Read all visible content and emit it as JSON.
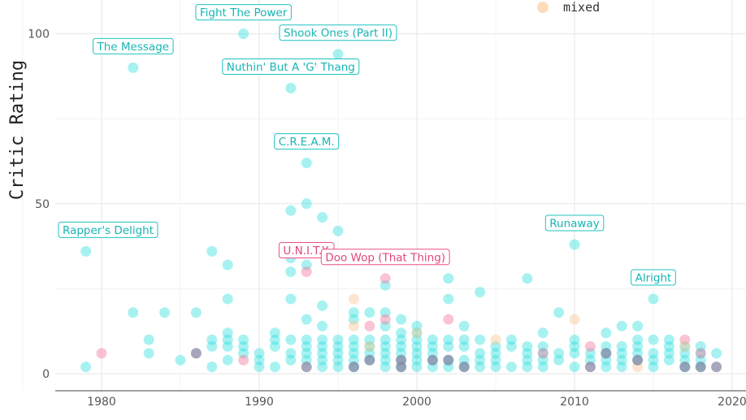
{
  "chart_data": {
    "type": "scatter",
    "title": "",
    "xlabel": "",
    "ylabel": "Critic Rating",
    "xlim": [
      1967,
      2021
    ],
    "ylim": [
      -4,
      112
    ],
    "x_ticks": [
      1980,
      1990,
      2000,
      2010,
      2020
    ],
    "y_ticks": [
      0,
      50,
      100
    ],
    "grid": true,
    "legend": {
      "position": "top-right",
      "visible_entries": [
        {
          "label": "mixed",
          "color": "#fbc48f"
        }
      ]
    },
    "colors": {
      "main": "#2ee0dd",
      "female": "#f2739c",
      "mixed": "#fbc48f",
      "dark": "#8a88a6"
    },
    "annotations": [
      {
        "text": "Rapper's Delight",
        "x": 1979,
        "y": 36,
        "group": "main"
      },
      {
        "text": "The Message",
        "x": 1982,
        "y": 90,
        "group": "main"
      },
      {
        "text": "Fight The Power",
        "x": 1989,
        "y": 100,
        "group": "main"
      },
      {
        "text": "Shook Ones (Part II)",
        "x": 1995,
        "y": 94,
        "group": "main"
      },
      {
        "text": "Nuthin' But A 'G' Thang",
        "x": 1992,
        "y": 84,
        "group": "main"
      },
      {
        "text": "C.R.E.A.M.",
        "x": 1993,
        "y": 62,
        "group": "main"
      },
      {
        "text": "U.N.I.T.Y.",
        "x": 1993,
        "y": 30,
        "group": "female"
      },
      {
        "text": "Doo Wop (That Thing)",
        "x": 1998,
        "y": 28,
        "group": "female"
      },
      {
        "text": "Runaway",
        "x": 2010,
        "y": 38,
        "group": "main"
      },
      {
        "text": "Alright",
        "x": 2015,
        "y": 22,
        "group": "main"
      }
    ],
    "series": [
      {
        "group": "main",
        "points": [
          [
            1979,
            36
          ],
          [
            1979,
            2
          ],
          [
            1982,
            90
          ],
          [
            1982,
            18
          ],
          [
            1983,
            10
          ],
          [
            1983,
            6
          ],
          [
            1984,
            18
          ],
          [
            1985,
            4
          ],
          [
            1986,
            18
          ],
          [
            1987,
            36
          ],
          [
            1987,
            10
          ],
          [
            1987,
            8
          ],
          [
            1987,
            2
          ],
          [
            1988,
            32
          ],
          [
            1988,
            22
          ],
          [
            1988,
            12
          ],
          [
            1988,
            10
          ],
          [
            1988,
            8
          ],
          [
            1988,
            4
          ],
          [
            1989,
            100
          ],
          [
            1989,
            10
          ],
          [
            1989,
            8
          ],
          [
            1989,
            6
          ],
          [
            1990,
            6
          ],
          [
            1990,
            4
          ],
          [
            1990,
            2
          ],
          [
            1991,
            12
          ],
          [
            1991,
            10
          ],
          [
            1991,
            8
          ],
          [
            1991,
            2
          ],
          [
            1992,
            84
          ],
          [
            1992,
            48
          ],
          [
            1992,
            34
          ],
          [
            1992,
            30
          ],
          [
            1992,
            22
          ],
          [
            1992,
            10
          ],
          [
            1992,
            6
          ],
          [
            1992,
            4
          ],
          [
            1993,
            62
          ],
          [
            1993,
            50
          ],
          [
            1993,
            32
          ],
          [
            1993,
            16
          ],
          [
            1993,
            10
          ],
          [
            1993,
            8
          ],
          [
            1993,
            6
          ],
          [
            1993,
            4
          ],
          [
            1994,
            46
          ],
          [
            1994,
            20
          ],
          [
            1994,
            14
          ],
          [
            1994,
            10
          ],
          [
            1994,
            8
          ],
          [
            1994,
            6
          ],
          [
            1994,
            4
          ],
          [
            1994,
            2
          ],
          [
            1995,
            94
          ],
          [
            1995,
            42
          ],
          [
            1995,
            10
          ],
          [
            1995,
            8
          ],
          [
            1995,
            6
          ],
          [
            1995,
            4
          ],
          [
            1995,
            2
          ],
          [
            1996,
            18
          ],
          [
            1996,
            16
          ],
          [
            1996,
            10
          ],
          [
            1996,
            8
          ],
          [
            1996,
            6
          ],
          [
            1996,
            4
          ],
          [
            1996,
            2
          ],
          [
            1997,
            18
          ],
          [
            1997,
            10
          ],
          [
            1997,
            8
          ],
          [
            1997,
            6
          ],
          [
            1997,
            4
          ],
          [
            1998,
            26
          ],
          [
            1998,
            18
          ],
          [
            1998,
            14
          ],
          [
            1998,
            10
          ],
          [
            1998,
            8
          ],
          [
            1998,
            6
          ],
          [
            1998,
            4
          ],
          [
            1998,
            2
          ],
          [
            1999,
            16
          ],
          [
            1999,
            12
          ],
          [
            1999,
            10
          ],
          [
            1999,
            8
          ],
          [
            1999,
            6
          ],
          [
            1999,
            4
          ],
          [
            1999,
            2
          ],
          [
            2000,
            14
          ],
          [
            2000,
            12
          ],
          [
            2000,
            10
          ],
          [
            2000,
            8
          ],
          [
            2000,
            6
          ],
          [
            2000,
            4
          ],
          [
            2000,
            2
          ],
          [
            2001,
            10
          ],
          [
            2001,
            8
          ],
          [
            2001,
            6
          ],
          [
            2001,
            4
          ],
          [
            2001,
            2
          ],
          [
            2002,
            28
          ],
          [
            2002,
            22
          ],
          [
            2002,
            10
          ],
          [
            2002,
            8
          ],
          [
            2002,
            4
          ],
          [
            2002,
            2
          ],
          [
            2003,
            14
          ],
          [
            2003,
            10
          ],
          [
            2003,
            8
          ],
          [
            2003,
            4
          ],
          [
            2003,
            2
          ],
          [
            2004,
            24
          ],
          [
            2004,
            10
          ],
          [
            2004,
            6
          ],
          [
            2004,
            4
          ],
          [
            2004,
            2
          ],
          [
            2005,
            8
          ],
          [
            2005,
            6
          ],
          [
            2005,
            4
          ],
          [
            2005,
            2
          ],
          [
            2006,
            10
          ],
          [
            2006,
            8
          ],
          [
            2006,
            2
          ],
          [
            2007,
            28
          ],
          [
            2007,
            8
          ],
          [
            2007,
            6
          ],
          [
            2007,
            4
          ],
          [
            2007,
            2
          ],
          [
            2008,
            12
          ],
          [
            2008,
            8
          ],
          [
            2008,
            6
          ],
          [
            2008,
            4
          ],
          [
            2008,
            2
          ],
          [
            2009,
            18
          ],
          [
            2009,
            6
          ],
          [
            2009,
            4
          ],
          [
            2010,
            38
          ],
          [
            2010,
            10
          ],
          [
            2010,
            8
          ],
          [
            2010,
            6
          ],
          [
            2010,
            2
          ],
          [
            2011,
            6
          ],
          [
            2011,
            4
          ],
          [
            2012,
            12
          ],
          [
            2012,
            8
          ],
          [
            2012,
            6
          ],
          [
            2012,
            4
          ],
          [
            2012,
            2
          ],
          [
            2013,
            14
          ],
          [
            2013,
            8
          ],
          [
            2013,
            6
          ],
          [
            2013,
            4
          ],
          [
            2013,
            2
          ],
          [
            2014,
            14
          ],
          [
            2014,
            10
          ],
          [
            2014,
            8
          ],
          [
            2014,
            6
          ],
          [
            2014,
            4
          ],
          [
            2015,
            22
          ],
          [
            2015,
            10
          ],
          [
            2015,
            6
          ],
          [
            2015,
            4
          ],
          [
            2015,
            2
          ],
          [
            2016,
            10
          ],
          [
            2016,
            8
          ],
          [
            2016,
            6
          ],
          [
            2016,
            4
          ],
          [
            2017,
            8
          ],
          [
            2017,
            6
          ],
          [
            2017,
            4
          ],
          [
            2017,
            2
          ],
          [
            2018,
            8
          ],
          [
            2018,
            6
          ],
          [
            2018,
            4
          ],
          [
            2018,
            2
          ],
          [
            2019,
            6
          ]
        ]
      },
      {
        "group": "female",
        "points": [
          [
            1980,
            6
          ],
          [
            1989,
            4
          ],
          [
            1993,
            30
          ],
          [
            1997,
            14
          ],
          [
            1998,
            28
          ],
          [
            1998,
            16
          ],
          [
            2002,
            16
          ],
          [
            2008,
            6
          ],
          [
            2011,
            8
          ],
          [
            2017,
            10
          ],
          [
            2018,
            6
          ]
        ]
      },
      {
        "group": "mixed",
        "points": [
          [
            1996,
            22
          ],
          [
            1996,
            14
          ],
          [
            1997,
            8
          ],
          [
            2000,
            12
          ],
          [
            2005,
            10
          ],
          [
            2010,
            16
          ],
          [
            2014,
            2
          ],
          [
            2017,
            8
          ]
        ]
      },
      {
        "group": "dark",
        "points": [
          [
            1986,
            6
          ],
          [
            1993,
            2
          ],
          [
            1996,
            2
          ],
          [
            1997,
            4
          ],
          [
            1999,
            4
          ],
          [
            1999,
            2
          ],
          [
            2001,
            4
          ],
          [
            2002,
            4
          ],
          [
            2003,
            2
          ],
          [
            2011,
            2
          ],
          [
            2012,
            6
          ],
          [
            2014,
            4
          ],
          [
            2017,
            2
          ],
          [
            2018,
            2
          ],
          [
            2019,
            2
          ]
        ]
      }
    ]
  }
}
